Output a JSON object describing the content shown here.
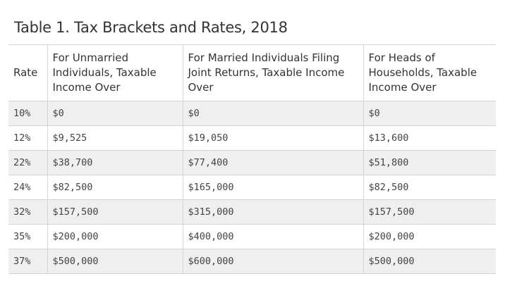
{
  "title": "Table 1. Tax Brackets and Rates, 2018",
  "table": {
    "headers": [
      "Rate",
      "For Unmarried Individuals, Taxable Income Over",
      "For Married Individuals Filing Joint Returns, Taxable Income Over",
      "For Heads of Households, Taxable Income Over"
    ],
    "rows": [
      [
        "10%",
        "$0",
        "$0",
        "$0"
      ],
      [
        "12%",
        "$9,525",
        "$19,050",
        "$13,600"
      ],
      [
        "22%",
        "$38,700",
        "$77,400",
        "$51,800"
      ],
      [
        "24%",
        "$82,500",
        "$165,000",
        "$82,500"
      ],
      [
        "32%",
        "$157,500",
        "$315,000",
        "$157,500"
      ],
      [
        "35%",
        "$200,000",
        "$400,000",
        "$200,000"
      ],
      [
        "37%",
        "$500,000",
        "$600,000",
        "$500,000"
      ]
    ]
  }
}
